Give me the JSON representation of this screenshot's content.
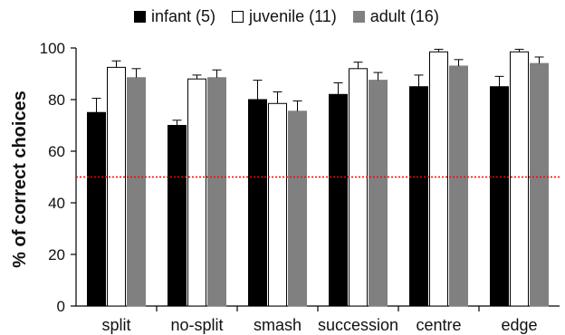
{
  "chart_data": {
    "type": "bar",
    "ylabel": "% of correct choices",
    "xlabel": "",
    "ylim": [
      0,
      100
    ],
    "yticks": [
      0,
      20,
      40,
      60,
      80,
      100
    ],
    "categories": [
      "split",
      "no-split",
      "smash",
      "succession",
      "centre",
      "edge"
    ],
    "series": [
      {
        "name": "infant (5)",
        "color": "#000000",
        "values": [
          75,
          70,
          80,
          82,
          85,
          85
        ],
        "errors": [
          5.5,
          2,
          7.5,
          4.5,
          4.5,
          4
        ]
      },
      {
        "name": "juvenile (11)",
        "color": "#ffffff",
        "values": [
          92.5,
          88,
          78.5,
          92,
          98.5,
          98.5
        ],
        "errors": [
          2.5,
          1.5,
          4.5,
          2.5,
          1,
          1
        ]
      },
      {
        "name": "adult (16)",
        "color": "#808080",
        "values": [
          88.5,
          88.5,
          75.5,
          87.5,
          93,
          94
        ],
        "errors": [
          3.5,
          3,
          4,
          3,
          2.5,
          2.5
        ]
      }
    ],
    "reference_line": {
      "value": 50,
      "color": "#ff0000",
      "style": "dotted"
    },
    "legend_position": "top-center",
    "grid": false
  }
}
